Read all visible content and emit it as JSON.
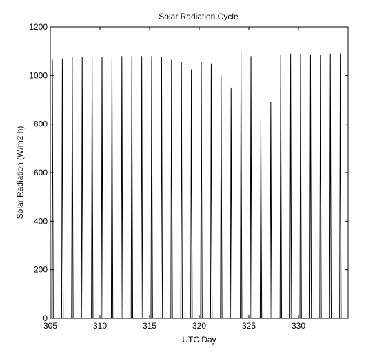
{
  "chart_data": {
    "type": "line",
    "title": "Solar Radiation Cycle",
    "xlabel": "UTC Day",
    "ylabel": "Solar Radiation (W/m2 h)",
    "xlim": [
      305,
      335
    ],
    "ylim": [
      0,
      1200
    ],
    "xticks": [
      "305",
      "310",
      "315",
      "320",
      "325",
      "330"
    ],
    "yticks": [
      "0",
      "200",
      "400",
      "600",
      "800",
      "1000",
      "1200"
    ],
    "grid": false,
    "line_color": "#000000",
    "daily_peaks": [
      {
        "day": 305,
        "peak": 1065
      },
      {
        "day": 306,
        "peak": 1070
      },
      {
        "day": 307,
        "peak": 1075
      },
      {
        "day": 308,
        "peak": 1075
      },
      {
        "day": 309,
        "peak": 1070
      },
      {
        "day": 310,
        "peak": 1075
      },
      {
        "day": 311,
        "peak": 1075
      },
      {
        "day": 312,
        "peak": 1080
      },
      {
        "day": 313,
        "peak": 1080
      },
      {
        "day": 314,
        "peak": 1080
      },
      {
        "day": 315,
        "peak": 1080
      },
      {
        "day": 316,
        "peak": 1075
      },
      {
        "day": 317,
        "peak": 1065
      },
      {
        "day": 318,
        "peak": 1055
      },
      {
        "day": 319,
        "peak": 1025
      },
      {
        "day": 320,
        "peak": 1055
      },
      {
        "day": 321,
        "peak": 1050
      },
      {
        "day": 322,
        "peak": 1000
      },
      {
        "day": 323,
        "peak": 950
      },
      {
        "day": 324,
        "peak": 1095
      },
      {
        "day": 325,
        "peak": 1080
      },
      {
        "day": 326,
        "peak": 820
      },
      {
        "day": 327,
        "peak": 890
      },
      {
        "day": 328,
        "peak": 1085
      },
      {
        "day": 329,
        "peak": 1090
      },
      {
        "day": 330,
        "peak": 1090
      },
      {
        "day": 331,
        "peak": 1085
      },
      {
        "day": 332,
        "peak": 1085
      },
      {
        "day": 333,
        "peak": 1090
      },
      {
        "day": 334,
        "peak": 1090
      }
    ]
  }
}
